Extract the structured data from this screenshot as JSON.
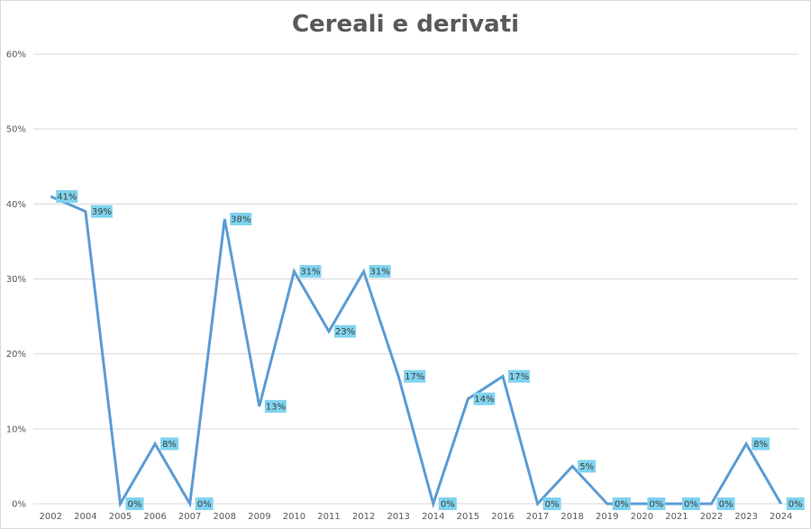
{
  "chart_data": {
    "type": "line",
    "title": "Cereali e derivati",
    "xlabel": "",
    "ylabel": "",
    "ylim": [
      0,
      60
    ],
    "ytick_step": 10,
    "grid": true,
    "legend": "none",
    "line_color": "#5b9bd5",
    "label_bg_color": "#7fd3ef",
    "categories": [
      "2002",
      "2004",
      "2005",
      "2006",
      "2007",
      "2008",
      "2009",
      "2010",
      "2011",
      "2012",
      "2013",
      "2014",
      "2015",
      "2016",
      "2017",
      "2018",
      "2019",
      "2020",
      "2021",
      "2022",
      "2023",
      "2024"
    ],
    "series": [
      {
        "values": [
          41,
          39,
          0,
          8,
          0,
          38,
          13,
          31,
          23,
          31,
          17,
          0,
          14,
          17,
          0,
          5,
          0,
          0,
          0,
          0,
          8,
          0
        ],
        "data_labels": [
          true,
          true,
          true,
          true,
          true,
          true,
          true,
          true,
          true,
          true,
          true,
          true,
          true,
          true,
          true,
          true,
          true,
          true,
          true,
          true,
          true,
          true
        ]
      }
    ]
  }
}
